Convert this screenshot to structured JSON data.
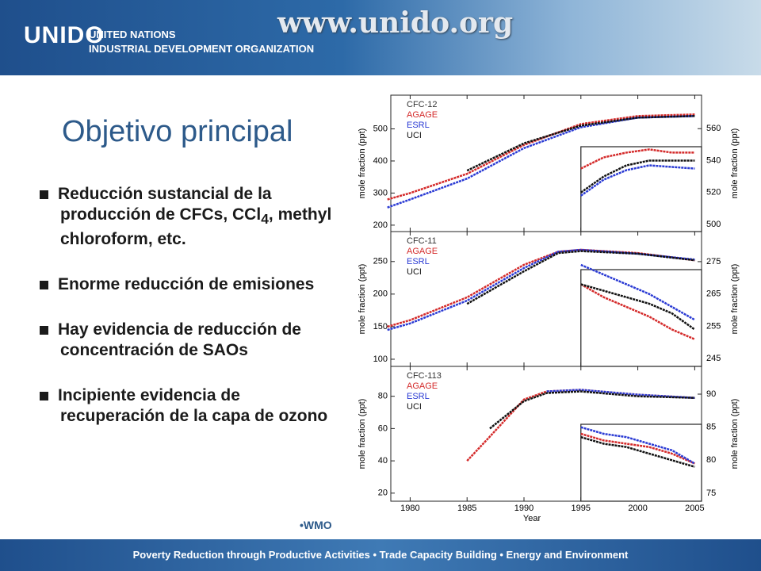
{
  "header": {
    "logo": "UNIDO",
    "org_line1": "UNITED NATIONS",
    "org_line2": "INDUSTRIAL DEVELOPMENT ORGANIZATION",
    "website": "www.unido.org"
  },
  "slide": {
    "title": "Objetivo principal",
    "bullets": [
      {
        "text": "Reducción sustancial  de la producción de CFCs, CCl",
        "sub": "4",
        "tail": ", methyl chloroform, etc."
      },
      "Enorme  reducción de emisiones",
      "Hay evidencia de reducción de concentración de SAOs",
      "Incipiente evidencia de recuperación de la capa de ozono"
    ],
    "source": "•WMO"
  },
  "footer": "Poverty Reduction through Productive Activities  •  Trade Capacity Building  •  Energy and Environment",
  "chart_data": [
    {
      "type": "line",
      "title": "CFC-12",
      "ylabel": "mole fraction (ppt)",
      "y2label": "mole fraction (ppt)",
      "xlim": [
        1978.3,
        2005.6
      ],
      "xticks": [
        1980,
        1985,
        1990,
        1995,
        2000,
        2005
      ],
      "ylim": [
        180,
        605
      ],
      "yticks": [
        200,
        300,
        400,
        500
      ],
      "y2lim": [
        495.5,
        581
      ],
      "y2ticks": [
        500,
        520,
        540,
        560
      ],
      "x": [
        1978,
        1980,
        1985,
        1990,
        1995,
        2000,
        2005
      ],
      "series": [
        {
          "name": "AGAGE",
          "color": "#d42a2a",
          "values": [
            280,
            300,
            360,
            450,
            515,
            540,
            545
          ]
        },
        {
          "name": "ESRL",
          "color": "#2a3ad4",
          "values": [
            255,
            280,
            345,
            440,
            505,
            535,
            540
          ]
        },
        {
          "name": "UCI",
          "color": "#111111",
          "values": [
            null,
            null,
            370,
            455,
            510,
            535,
            540
          ]
        }
      ],
      "inset_x": [
        1995,
        1997,
        1999,
        2001,
        2003,
        2005
      ],
      "inset_series": [
        {
          "color": "#d42a2a",
          "axis": "y2",
          "values": [
            535,
            542,
            545,
            547,
            545,
            545
          ]
        },
        {
          "color": "#2a3ad4",
          "axis": "y2",
          "values": [
            518,
            528,
            534,
            537,
            536,
            535
          ]
        },
        {
          "color": "#111111",
          "axis": "y2",
          "values": [
            520,
            530,
            537,
            540,
            540,
            540
          ]
        }
      ]
    },
    {
      "type": "line",
      "title": "CFC-11",
      "ylabel": "mole fraction (ppt)",
      "y2label": "mole fraction (ppt)",
      "xlim": [
        1978.3,
        2005.6
      ],
      "xticks": [
        1980,
        1985,
        1990,
        1995,
        2000,
        2005
      ],
      "ylim": [
        89,
        296
      ],
      "yticks": [
        100,
        150,
        200,
        250
      ],
      "y2lim": [
        242.6,
        284.3
      ],
      "y2ticks": [
        245,
        255,
        265,
        275
      ],
      "x": [
        1978,
        1980,
        1985,
        1990,
        1993,
        1995,
        2000,
        2005
      ],
      "series": [
        {
          "name": "AGAGE",
          "color": "#d42a2a",
          "values": [
            150,
            160,
            195,
            245,
            265,
            268,
            263,
            252
          ]
        },
        {
          "name": "ESRL",
          "color": "#2a3ad4",
          "values": [
            145,
            155,
            190,
            240,
            265,
            268,
            262,
            253
          ]
        },
        {
          "name": "UCI",
          "color": "#111111",
          "values": [
            null,
            null,
            185,
            235,
            263,
            266,
            262,
            252
          ]
        }
      ],
      "inset_x": [
        1995,
        1997,
        1999,
        2001,
        2003,
        2005
      ],
      "inset_series": [
        {
          "color": "#d42a2a",
          "axis": "y2",
          "values": [
            268,
            264,
            261,
            258,
            254,
            251
          ]
        },
        {
          "color": "#2a3ad4",
          "axis": "y2",
          "values": [
            274,
            271,
            268,
            265,
            261,
            257
          ]
        },
        {
          "color": "#111111",
          "axis": "y2",
          "values": [
            268,
            266,
            264,
            262,
            259,
            254
          ]
        }
      ]
    },
    {
      "type": "line",
      "title": "CFC-113",
      "ylabel": "mole fraction (ppt)",
      "y2label": "mole fraction (ppt)",
      "xlabel": "Year",
      "xlim": [
        1978.3,
        2005.6
      ],
      "xticks": [
        1980,
        1985,
        1990,
        1995,
        2000,
        2005
      ],
      "ylim": [
        15,
        98.5
      ],
      "yticks": [
        20,
        40,
        60,
        80
      ],
      "y2lim": [
        73.8,
        94.2
      ],
      "y2ticks": [
        75,
        80,
        85,
        90
      ],
      "x": [
        1985,
        1987,
        1990,
        1992,
        1995,
        2000,
        2005
      ],
      "series": [
        {
          "name": "AGAGE",
          "color": "#d42a2a",
          "values": [
            40,
            55,
            78,
            83,
            84,
            81,
            79
          ]
        },
        {
          "name": "ESRL",
          "color": "#2a3ad4",
          "values": [
            null,
            null,
            null,
            83,
            84,
            81,
            79
          ]
        },
        {
          "name": "UCI",
          "color": "#111111",
          "values": [
            null,
            60,
            77,
            82,
            83,
            80,
            79
          ]
        }
      ],
      "inset_x": [
        1995,
        1997,
        1999,
        2001,
        2003,
        2005
      ],
      "inset_series": [
        {
          "color": "#d42a2a",
          "axis": "y2",
          "values": [
            84,
            83,
            82.5,
            82,
            81,
            79.5
          ]
        },
        {
          "color": "#2a3ad4",
          "axis": "y2",
          "values": [
            85,
            84,
            83.5,
            82.5,
            81.5,
            79.5
          ]
        },
        {
          "color": "#111111",
          "axis": "y2",
          "values": [
            83.5,
            82.5,
            82,
            81,
            80,
            79
          ]
        }
      ]
    }
  ]
}
